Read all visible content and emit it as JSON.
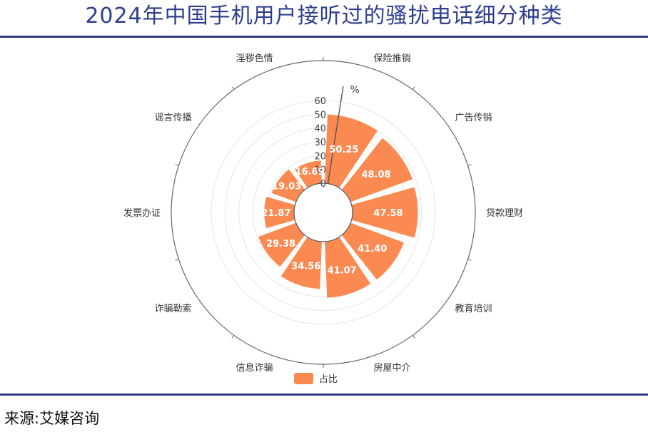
{
  "title": "2024年中国手机用户接听过的骚扰电话细分种类",
  "source": {
    "prefix": "来源:",
    "name": "艾媒咨询"
  },
  "chart_data": {
    "type": "polar-bar",
    "title": "2024年中国手机用户接听过的骚扰电话细分种类",
    "radial_axis": {
      "unit": "%",
      "min": 0,
      "max": 60,
      "ticks": [
        0,
        10,
        20,
        30,
        40,
        50,
        60
      ]
    },
    "categories": [
      "保险推销",
      "广告传销",
      "贷款理财",
      "教育培训",
      "房屋中介",
      "信息诈骗",
      "诈骗勒索",
      "发票办证",
      "谣言传播",
      "淫秽色情"
    ],
    "series": [
      {
        "name": "占比",
        "values": [
          50.25,
          48.08,
          47.58,
          41.4,
          41.07,
          34.56,
          29.38,
          21.87,
          19.03,
          16.69
        ]
      }
    ],
    "value_labels": [
      "50.25",
      "48.08",
      "47.58",
      "41.40",
      "41.07",
      "34.56",
      "29.38",
      "21.87",
      "19.03",
      "16.69"
    ],
    "legend": {
      "position": "bottom",
      "label": "占比"
    },
    "colors": {
      "bar": "#fb8a52",
      "bar_stroke": "#ffffff",
      "axis": "#555555",
      "grid": "#e6e6e6",
      "title": "#2f3f8f",
      "rule": "#2d3b7d"
    }
  }
}
